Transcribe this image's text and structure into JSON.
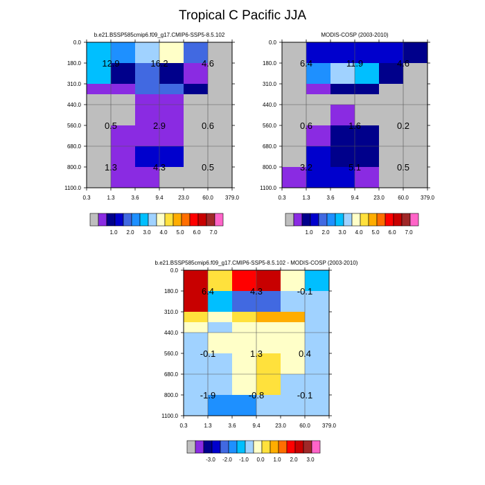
{
  "title": "Tropical C Pacific JJA",
  "palettes": {
    "main": [
      "#bebebe",
      "#8a2be2",
      "#00008b",
      "#0000cd",
      "#4169e1",
      "#1e90ff",
      "#00bfff",
      "#a0d2ff",
      "#ffffc8",
      "#ffe13c",
      "#ffad00",
      "#ff6e00",
      "#ff0000",
      "#c80000",
      "#a02828",
      "#ff64c8"
    ],
    "diff": [
      "#bebebe",
      "#8a2be2",
      "#00008b",
      "#0000cd",
      "#4169e1",
      "#1e90ff",
      "#00bfff",
      "#a0d2ff",
      "#ffffc8",
      "#ffe13c",
      "#ffad00",
      "#ff6e00",
      "#ff0000",
      "#c80000",
      "#a02828",
      "#ff64c8"
    ]
  },
  "chart_data": [
    {
      "type": "heatmap",
      "title": "b.e21.BSSP585cmip6.f09_g17.CMIP6-SSP5-8.5.102",
      "x_ticks": [
        "0.3",
        "1.3",
        "3.6",
        "9.4",
        "23.0",
        "60.0",
        "379.0"
      ],
      "y_ticks": [
        "0.0",
        "180.0",
        "310.0",
        "440.0",
        "560.0",
        "680.0",
        "800.0",
        "1100.0"
      ],
      "grid": true,
      "cells": [
        [
          6,
          5,
          7,
          8,
          4,
          0
        ],
        [
          6,
          2,
          4,
          2,
          1,
          0
        ],
        [
          1,
          1,
          4,
          4,
          2,
          0
        ],
        [
          0,
          0,
          1,
          1,
          0,
          0
        ],
        [
          0,
          0,
          1,
          1,
          0,
          0
        ],
        [
          0,
          1,
          1,
          1,
          0,
          0
        ],
        [
          0,
          1,
          3,
          3,
          0,
          0
        ],
        [
          0,
          1,
          1,
          0,
          0,
          0
        ]
      ],
      "annotations": [
        {
          "text": "12.9",
          "col": 1,
          "row": 1
        },
        {
          "text": "16.2",
          "col": 3,
          "row": 1
        },
        {
          "text": "4.6",
          "col": 5,
          "row": 1
        },
        {
          "text": "0.5",
          "col": 1,
          "row": 4
        },
        {
          "text": "2.9",
          "col": 3,
          "row": 4
        },
        {
          "text": "0.6",
          "col": 5,
          "row": 4
        },
        {
          "text": "1.3",
          "col": 1,
          "row": 6
        },
        {
          "text": "4.3",
          "col": 3,
          "row": 6
        },
        {
          "text": "0.5",
          "col": 5,
          "row": 6
        }
      ],
      "colorbar": {
        "palette": "main",
        "labels": [
          "1.0",
          "2.0",
          "3.0",
          "4.0",
          "5.0",
          "6.0",
          "7.0"
        ]
      }
    },
    {
      "type": "heatmap",
      "title": "MODIS-COSP (2003-2010)",
      "x_ticks": [
        "0.3",
        "1.3",
        "3.6",
        "9.4",
        "23.0",
        "60.0",
        "379.0"
      ],
      "y_ticks": [
        "0.0",
        "180.0",
        "310.0",
        "440.0",
        "560.0",
        "680.0",
        "800.0",
        "1100.0"
      ],
      "grid": true,
      "cells": [
        [
          0,
          3,
          3,
          3,
          3,
          2
        ],
        [
          0,
          5,
          7,
          6,
          2,
          0
        ],
        [
          0,
          1,
          2,
          2,
          0,
          0
        ],
        [
          0,
          0,
          0,
          0,
          0,
          0
        ],
        [
          0,
          0,
          1,
          0,
          0,
          0
        ],
        [
          0,
          1,
          2,
          2,
          0,
          0
        ],
        [
          0,
          3,
          2,
          2,
          0,
          0
        ],
        [
          1,
          3,
          3,
          1,
          0,
          0
        ]
      ],
      "annotations": [
        {
          "text": "6.4",
          "col": 1,
          "row": 1
        },
        {
          "text": "11.9",
          "col": 3,
          "row": 1
        },
        {
          "text": "4.6",
          "col": 5,
          "row": 1
        },
        {
          "text": "0.6",
          "col": 1,
          "row": 4
        },
        {
          "text": "1.6",
          "col": 3,
          "row": 4
        },
        {
          "text": "0.2",
          "col": 5,
          "row": 4
        },
        {
          "text": "3.2",
          "col": 1,
          "row": 6
        },
        {
          "text": "5.1",
          "col": 3,
          "row": 6
        },
        {
          "text": "0.5",
          "col": 5,
          "row": 6
        }
      ],
      "colorbar": {
        "palette": "main",
        "labels": [
          "1.0",
          "2.0",
          "3.0",
          "4.0",
          "5.0",
          "6.0",
          "7.0"
        ]
      }
    },
    {
      "type": "heatmap",
      "title": "b.e21.BSSP585cmip6.f09_g17.CMIP6-SSP5-8.5.102 - MODIS-COSP (2003-2010)",
      "x_ticks": [
        "0.3",
        "1.3",
        "3.6",
        "9.4",
        "23.0",
        "60.0",
        "379.0"
      ],
      "y_ticks": [
        "0.0",
        "180.0",
        "310.0",
        "440.0",
        "560.0",
        "680.0",
        "800.0",
        "1100.0"
      ],
      "grid": true,
      "cells": [
        [
          13,
          9,
          12,
          13,
          8,
          6
        ],
        [
          13,
          6,
          4,
          4,
          7,
          7
        ],
        [
          9,
          8,
          9,
          10,
          10,
          7
        ],
        [
          8,
          7,
          8,
          8,
          8,
          7
        ],
        [
          7,
          8,
          8,
          8,
          8,
          7
        ],
        [
          7,
          7,
          8,
          9,
          8,
          7
        ],
        [
          7,
          7,
          8,
          9,
          7,
          7
        ],
        [
          7,
          5,
          5,
          7,
          7,
          7
        ]
      ],
      "annotations": [
        {
          "text": "6.4",
          "col": 1,
          "row": 1
        },
        {
          "text": "4.3",
          "col": 3,
          "row": 1
        },
        {
          "text": "-0.1",
          "col": 5,
          "row": 1
        },
        {
          "text": "-0.1",
          "col": 1,
          "row": 4
        },
        {
          "text": "1.3",
          "col": 3,
          "row": 4
        },
        {
          "text": "0.4",
          "col": 5,
          "row": 4
        },
        {
          "text": "-1.9",
          "col": 1,
          "row": 6
        },
        {
          "text": "-0.8",
          "col": 3,
          "row": 6
        },
        {
          "text": "-0.1",
          "col": 5,
          "row": 6
        }
      ],
      "colorbar": {
        "palette": "diff",
        "labels": [
          "-3.0",
          "-2.0",
          "-1.0",
          "0.0",
          "1.0",
          "2.0",
          "3.0"
        ]
      }
    }
  ]
}
